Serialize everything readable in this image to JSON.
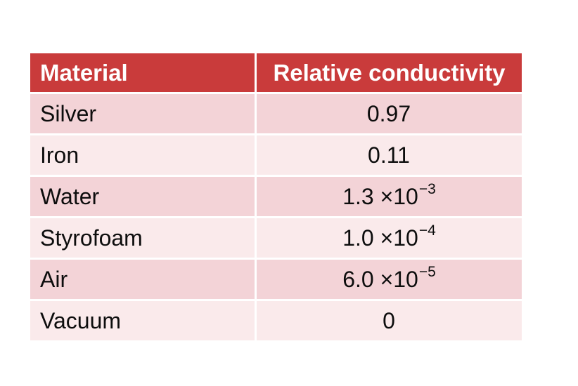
{
  "table": {
    "columns": [
      {
        "label": "Material"
      },
      {
        "label": "Relative conductivity"
      }
    ],
    "rows": [
      {
        "material": "Silver",
        "value_base": "0.97",
        "value_exp": ""
      },
      {
        "material": "Iron",
        "value_base": "0.11",
        "value_exp": ""
      },
      {
        "material": "Water",
        "value_base": "1.3 ×10",
        "value_exp": "−3"
      },
      {
        "material": "Styrofoam",
        "value_base": "1.0 ×10",
        "value_exp": "−4"
      },
      {
        "material": "Air",
        "value_base": "6.0 ×10",
        "value_exp": "−5"
      },
      {
        "material": "Vacuum",
        "value_base": "0",
        "value_exp": ""
      }
    ],
    "colors": {
      "header_bg": "#C93B3B",
      "header_text": "#FFFFFF",
      "row_dark_bg": "#F3D3D7",
      "row_light_bg": "#FAEAEB",
      "gap": "#FFFFFF",
      "cell_text": "#0D0D0D"
    }
  },
  "chart_data": {
    "type": "table",
    "title": "",
    "columns": [
      "Material",
      "Relative conductivity"
    ],
    "categories": [
      "Silver",
      "Iron",
      "Water",
      "Styrofoam",
      "Air",
      "Vacuum"
    ],
    "values": [
      0.97,
      0.11,
      0.0013,
      0.0001,
      6e-05,
      0
    ],
    "value_labels": [
      "0.97",
      "0.11",
      "1.3 ×10⁻³",
      "1.0 ×10⁻⁴",
      "6.0 ×10⁻⁵",
      "0"
    ],
    "layout_hints": {
      "header_color": "#C93B3B",
      "alternating_row_colors": [
        "#F3D3D7",
        "#FAEAEB"
      ],
      "value_alignment": "center",
      "material_alignment": "left"
    }
  }
}
